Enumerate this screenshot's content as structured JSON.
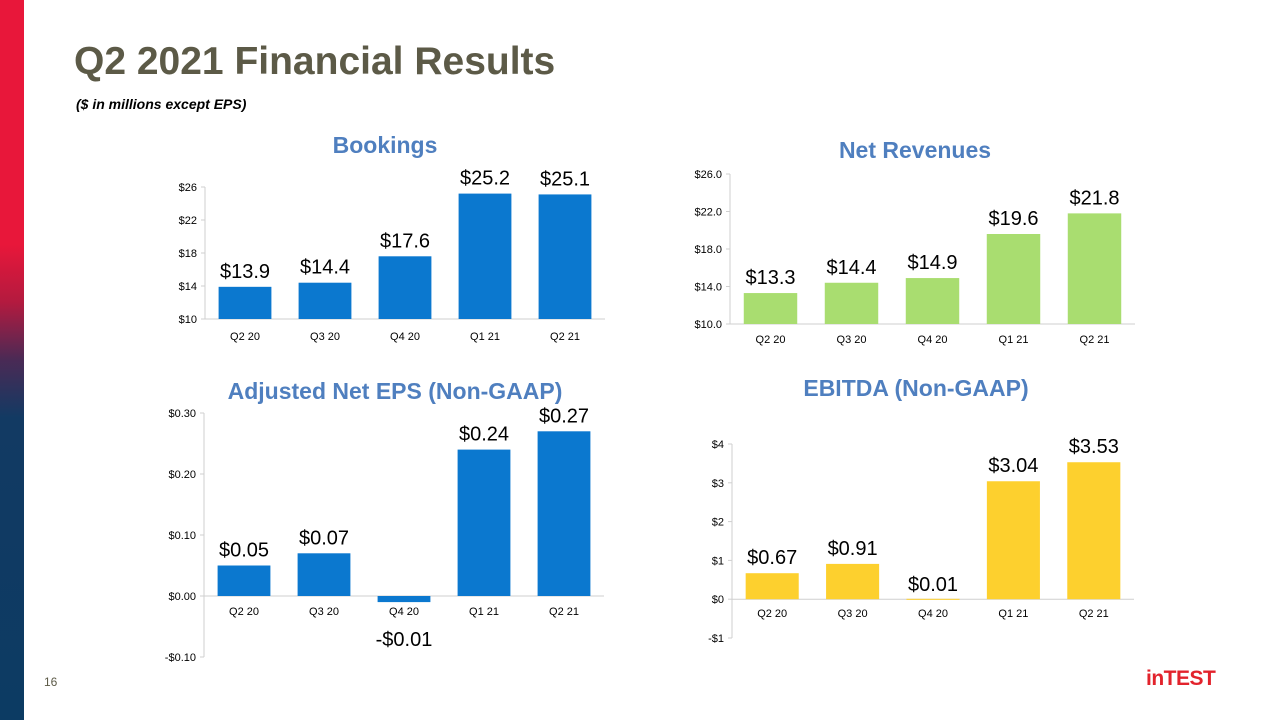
{
  "title": "Q2 2021 Financial Results",
  "subtitle": "($ in millions except EPS)",
  "page_number": "16",
  "logo_text": "inTEST",
  "chart_data": [
    {
      "type": "bar",
      "title": "Bookings",
      "categories": [
        "Q2 20",
        "Q3 20",
        "Q4 20",
        "Q1 21",
        "Q2 21"
      ],
      "values": [
        13.9,
        14.4,
        17.6,
        25.2,
        25.1
      ],
      "value_labels": [
        "$13.9",
        "$14.4",
        "$17.6",
        "$25.2",
        "$25.1"
      ],
      "ylim": [
        10,
        26
      ],
      "yticks": [
        10,
        14,
        18,
        22,
        26
      ],
      "ytick_labels": [
        "$10",
        "$14",
        "$18",
        "$22",
        "$26"
      ],
      "color": "#0b78cf",
      "xlabel": "",
      "ylabel": "",
      "grid": false
    },
    {
      "type": "bar",
      "title": "Net Revenues",
      "categories": [
        "Q2 20",
        "Q3 20",
        "Q4 20",
        "Q1 21",
        "Q2 21"
      ],
      "values": [
        13.3,
        14.4,
        14.9,
        19.6,
        21.8
      ],
      "value_labels": [
        "$13.3",
        "$14.4",
        "$14.9",
        "$19.6",
        "$21.8"
      ],
      "ylim": [
        10,
        26
      ],
      "yticks": [
        10,
        14,
        18,
        22,
        26
      ],
      "ytick_labels": [
        "$10.0",
        "$14.0",
        "$18.0",
        "$22.0",
        "$26.0"
      ],
      "color": "#a9dd70",
      "xlabel": "",
      "ylabel": "",
      "grid": false
    },
    {
      "type": "bar",
      "title": "Adjusted Net EPS (Non-GAAP)",
      "categories": [
        "Q2 20",
        "Q3 20",
        "Q4 20",
        "Q1 21",
        "Q2 21"
      ],
      "values": [
        0.05,
        0.07,
        -0.01,
        0.24,
        0.27
      ],
      "value_labels": [
        "$0.05",
        "$0.07",
        "-$0.01",
        "$0.24",
        "$0.27"
      ],
      "ylim": [
        -0.1,
        0.3
      ],
      "yticks": [
        -0.1,
        0.0,
        0.1,
        0.2,
        0.3
      ],
      "ytick_labels": [
        "-$0.10",
        "$0.00",
        "$0.10",
        "$0.20",
        "$0.30"
      ],
      "color": "#0b78cf",
      "xlabel": "",
      "ylabel": "",
      "grid": false
    },
    {
      "type": "bar",
      "title": "EBITDA (Non-GAAP)",
      "categories": [
        "Q2 20",
        "Q3 20",
        "Q4 20",
        "Q1 21",
        "Q2 21"
      ],
      "values": [
        0.67,
        0.91,
        0.01,
        3.04,
        3.53
      ],
      "value_labels": [
        "$0.67",
        "$0.91",
        "$0.01",
        "$3.04",
        "$3.53"
      ],
      "ylim": [
        -1,
        4
      ],
      "yticks": [
        -1,
        0,
        1,
        2,
        3,
        4
      ],
      "ytick_labels": [
        "-$1",
        "$0",
        "$1",
        "$2",
        "$3",
        "$4"
      ],
      "color": "#fdd02e",
      "xlabel": "",
      "ylabel": "",
      "grid": false
    }
  ]
}
